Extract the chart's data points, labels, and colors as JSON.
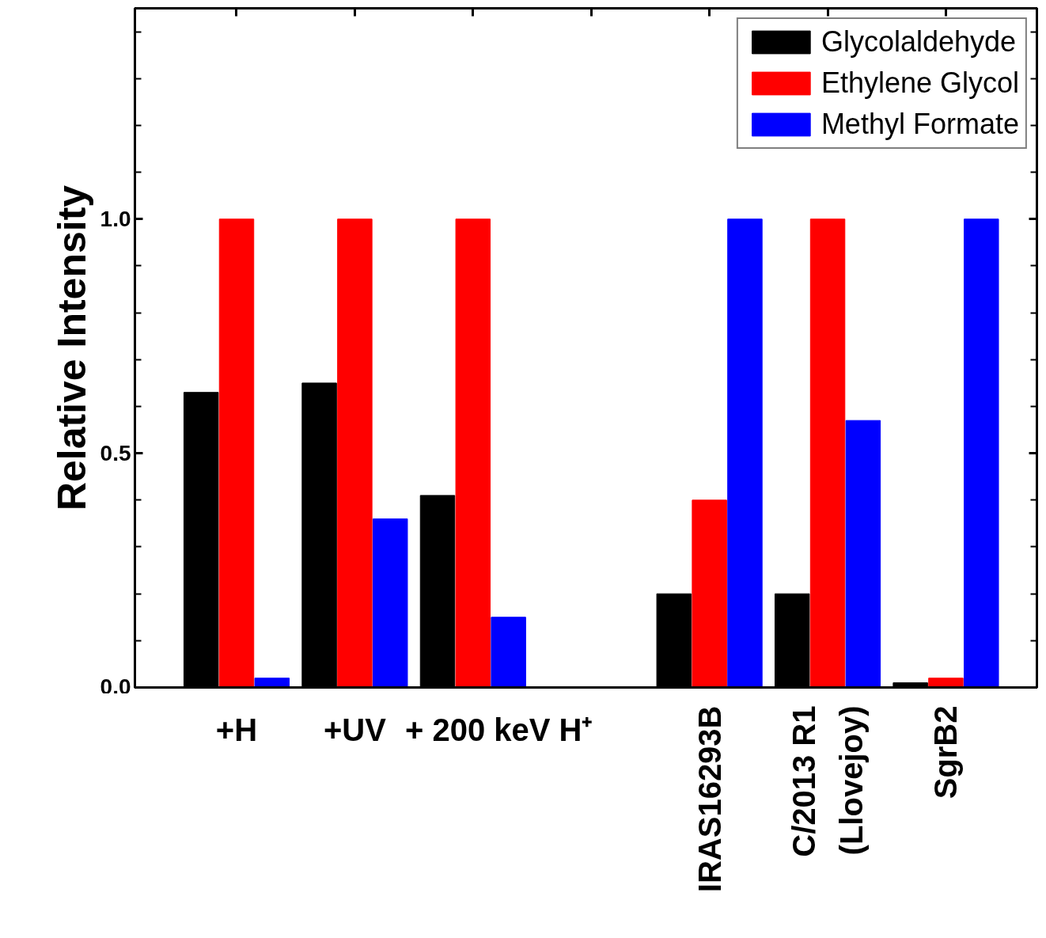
{
  "chart_data": {
    "type": "bar",
    "ylabel": "Relative Intensity",
    "categories": [
      "+H",
      "+UV",
      "+ 200 keV H⁺",
      null,
      "IRAS16293B",
      "C/2013 R1\n(Llovejoy)",
      "SgrB2"
    ],
    "series": [
      {
        "name": "Glycolaldehyde",
        "color": "#000000",
        "values": [
          0.63,
          0.65,
          0.41,
          null,
          0.2,
          0.2,
          0.01
        ]
      },
      {
        "name": "Ethylene Glycol",
        "color": "#ff0000",
        "values": [
          1.0,
          1.0,
          1.0,
          null,
          0.4,
          1.0,
          0.02
        ]
      },
      {
        "name": "Methyl Formate",
        "color": "#0000ff",
        "values": [
          0.02,
          0.36,
          0.15,
          null,
          1.0,
          0.57,
          1.0
        ]
      }
    ],
    "ylim": [
      0,
      1.45
    ],
    "yticks": [
      {
        "value": 0,
        "label": "0.0"
      },
      {
        "value": 0.1,
        "label": null
      },
      {
        "value": 0.2,
        "label": null
      },
      {
        "value": 0.3,
        "label": null
      },
      {
        "value": 0.4,
        "label": null
      },
      {
        "value": 0.5,
        "label": "0.5"
      },
      {
        "value": 0.6,
        "label": null
      },
      {
        "value": 0.7,
        "label": null
      },
      {
        "value": 0.8,
        "label": null
      },
      {
        "value": 0.9,
        "label": null
      },
      {
        "value": 1.0,
        "label": "1.0"
      },
      {
        "value": 1.1,
        "label": null
      },
      {
        "value": 1.2,
        "label": null
      },
      {
        "value": 1.3,
        "label": null
      },
      {
        "value": 1.4,
        "label": null
      }
    ],
    "grid": false,
    "legend": "top right"
  }
}
